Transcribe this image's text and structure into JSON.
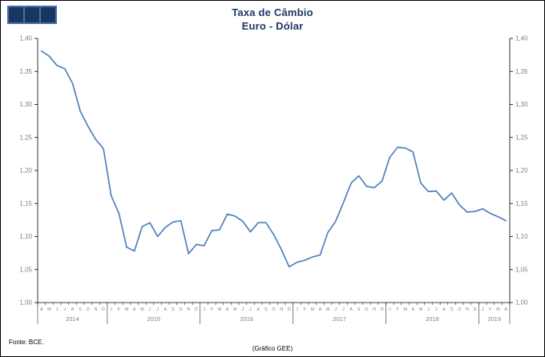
{
  "header": {
    "title_line1": "Taxa de Câmbio",
    "title_line2": "Euro - Dólar"
  },
  "footer": {
    "source": "Fonte: BCE.",
    "credit": "(Gráfico GEE)"
  },
  "colors": {
    "line": "#4F81BD",
    "title": "#1F3864",
    "axis": "#000000",
    "tick_label": "#7F7F7F",
    "logo": "#17375E"
  },
  "chart_data": {
    "type": "line",
    "title": "Taxa de Câmbio Euro - Dólar",
    "xlabel": "",
    "ylabel": "",
    "ylim": [
      1.0,
      1.4
    ],
    "grid": false,
    "legend": "none",
    "yticks": {
      "values": [
        1.0,
        1.05,
        1.1,
        1.15,
        1.2,
        1.25,
        1.3,
        1.35,
        1.4
      ],
      "labels": [
        "1,00",
        "1,05",
        "1,10",
        "1,15",
        "1,20",
        "1,25",
        "1,30",
        "1,35",
        "1,40"
      ]
    },
    "months": [
      "A",
      "M",
      "J",
      "J",
      "A",
      "S",
      "O",
      "N",
      "D",
      "J",
      "F",
      "M",
      "A",
      "M",
      "J",
      "J",
      "A",
      "S",
      "O",
      "N",
      "D",
      "J",
      "F",
      "M",
      "A",
      "M",
      "J",
      "J",
      "A",
      "S",
      "O",
      "N",
      "D",
      "J",
      "F",
      "M",
      "A",
      "M",
      "J",
      "J",
      "A",
      "S",
      "O",
      "N",
      "D",
      "J",
      "F",
      "M",
      "A",
      "M",
      "J",
      "J",
      "A",
      "S",
      "O",
      "N",
      "D",
      "J",
      "F",
      "M",
      "A"
    ],
    "years": [
      {
        "label": "2014",
        "count": 9
      },
      {
        "label": "2015",
        "count": 12
      },
      {
        "label": "2016",
        "count": 12
      },
      {
        "label": "2017",
        "count": 12
      },
      {
        "label": "2018",
        "count": 12
      },
      {
        "label": "2019",
        "count": 4
      }
    ],
    "series": [
      {
        "name": "EUR/USD",
        "values": [
          1.381,
          1.373,
          1.359,
          1.354,
          1.332,
          1.29,
          1.267,
          1.247,
          1.233,
          1.162,
          1.135,
          1.084,
          1.078,
          1.115,
          1.121,
          1.1,
          1.114,
          1.122,
          1.124,
          1.074,
          1.088,
          1.086,
          1.109,
          1.11,
          1.134,
          1.131,
          1.123,
          1.107,
          1.121,
          1.121,
          1.103,
          1.08,
          1.054,
          1.061,
          1.064,
          1.069,
          1.072,
          1.106,
          1.123,
          1.151,
          1.181,
          1.192,
          1.176,
          1.174,
          1.184,
          1.22,
          1.235,
          1.234,
          1.228,
          1.181,
          1.168,
          1.169,
          1.155,
          1.166,
          1.148,
          1.137,
          1.138,
          1.142,
          1.135,
          1.13,
          1.124
        ]
      }
    ]
  }
}
